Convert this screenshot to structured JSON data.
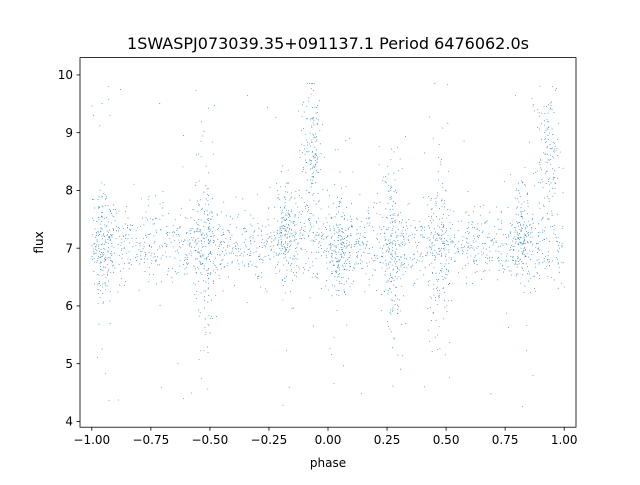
{
  "chart_data": {
    "type": "scatter",
    "title": "1SWASPJ073039.35+091137.1 Period 6476062.0s",
    "xlabel": "phase",
    "ylabel": "flux",
    "xlim": [
      -1.05,
      1.05
    ],
    "ylim": [
      3.9,
      10.3
    ],
    "x_ticks": [
      -1.0,
      -0.75,
      -0.5,
      -0.25,
      0.0,
      0.25,
      0.5,
      0.75,
      1.0
    ],
    "x_tick_labels": [
      "−1.00",
      "−0.75",
      "−0.50",
      "−0.25",
      "0.00",
      "0.25",
      "0.50",
      "0.75",
      "1.00"
    ],
    "y_ticks": [
      4,
      5,
      6,
      7,
      8,
      9,
      10
    ],
    "y_tick_labels": [
      "4",
      "5",
      "6",
      "7",
      "8",
      "9",
      "10"
    ],
    "grid": false,
    "legend": "none",
    "marker_color": "#1f77b4",
    "point_count": 3000,
    "baseline_flux": 7.05,
    "flux_scatter": 0.32,
    "flux_range": [
      4.2,
      9.85
    ],
    "dense_phase_bands": [
      {
        "phase": -0.95,
        "flux_center": 7.1,
        "spread": 0.5
      },
      {
        "phase": -0.52,
        "flux_center": 6.95,
        "spread": 0.9
      },
      {
        "phase": -0.18,
        "flux_center": 7.3,
        "spread": 0.45
      },
      {
        "phase": -0.07,
        "flux_center": 8.6,
        "spread": 0.6
      },
      {
        "phase": 0.05,
        "flux_center": 7.0,
        "spread": 0.45
      },
      {
        "phase": 0.27,
        "flux_center": 6.9,
        "spread": 0.8
      },
      {
        "phase": 0.47,
        "flux_center": 6.95,
        "spread": 0.9
      },
      {
        "phase": 0.82,
        "flux_center": 7.3,
        "spread": 0.45
      },
      {
        "phase": 0.93,
        "flux_center": 8.6,
        "spread": 0.6
      }
    ]
  }
}
